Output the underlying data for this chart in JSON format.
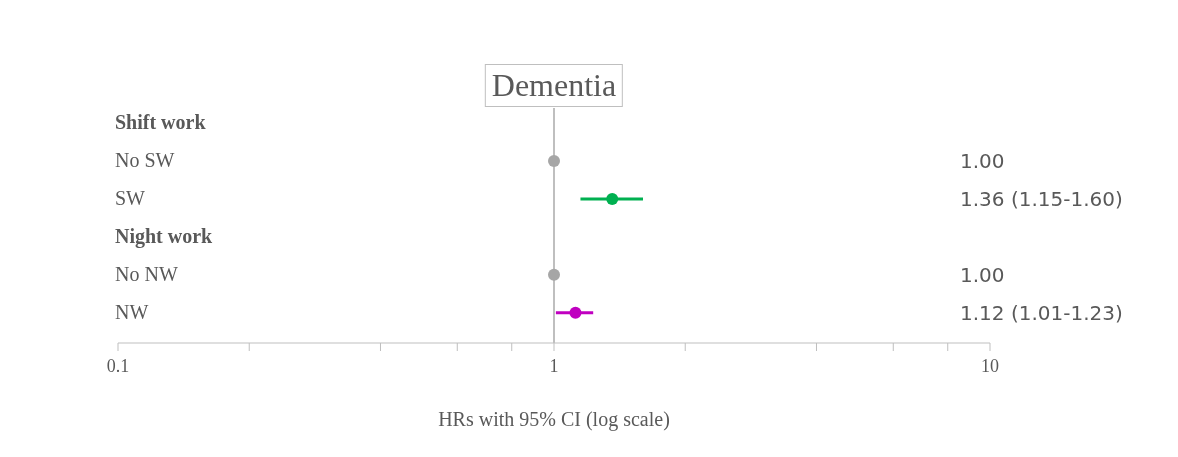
{
  "chart_data": {
    "type": "scatter",
    "title": "Dementia",
    "xlabel": "HRs with 95% CI (log scale)",
    "categories": [
      "Shift work",
      "No SW",
      "SW",
      "Night work",
      "No NW",
      "NW"
    ],
    "orientation": "horizontal",
    "series": [
      {
        "values": [
          null,
          1.0,
          1.36,
          null,
          1.0,
          1.12
        ],
        "colors": [
          null,
          "#a6a6a6",
          "#00b050",
          null,
          "#a6a6a6",
          "#c000c0"
        ],
        "errors": [
          null,
          null,
          [
            1.15,
            1.6
          ],
          null,
          null,
          [
            1.01,
            1.23
          ]
        ]
      }
    ],
    "annotations": [
      "1.00",
      "1.36 (1.15-1.60)",
      "1.00",
      "1.12 (1.01-1.23)"
    ],
    "log": "x",
    "xlim": [
      0.1,
      10
    ],
    "xticks": [
      0.1,
      {
        "value": 0.2,
        "label": null
      },
      {
        "value": 0.4,
        "label": null
      },
      {
        "value": 0.6,
        "label": null
      },
      {
        "value": 0.8,
        "label": null
      },
      1,
      {
        "value": 2,
        "label": null
      },
      {
        "value": 4,
        "label": null
      },
      {
        "value": 6,
        "label": null
      },
      {
        "value": 8,
        "label": null
      },
      10
    ],
    "ref_lines": [
      {
        "axis": "x",
        "value": 1,
        "color": "#bfbfbf"
      }
    ],
    "marker": "circle",
    "grid": false,
    "legend": false
  }
}
